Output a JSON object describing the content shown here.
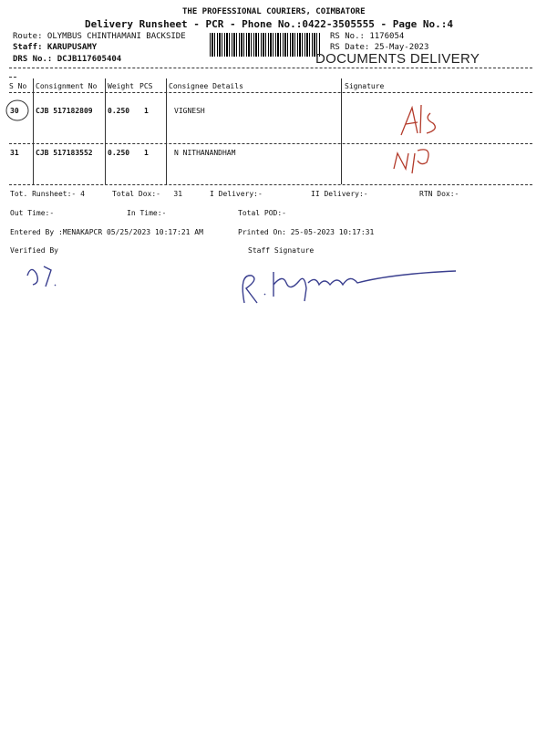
{
  "header": {
    "company": "THE PROFESSIONAL COURIERS, COIMBATORE",
    "subtitle": "Delivery Runsheet - PCR - Phone No.:0422-3505555 - Page No.:4",
    "route": "Route: OLYMBUS CHINTHAMANI BACKSIDE",
    "staff": "Staff: KARUPUSAMY",
    "drs_no": "DRS No.: DCJB117605404",
    "rs_no": "RS No.: 1176054",
    "rs_date": "RS Date: 25-May-2023",
    "stamp": "DOCUMENTS DELIVERY"
  },
  "table": {
    "columns": [
      "S No",
      "Consignment No",
      "Weight",
      "PCS",
      "Consignee Details",
      "Signature"
    ],
    "rows": [
      {
        "sno": "30",
        "consignment": "CJB 517182809",
        "weight": "0.250",
        "pcs": "1",
        "consignee": "VIGNESH"
      },
      {
        "sno": "31",
        "consignment": "CJB 517183552",
        "weight": "0.250",
        "pcs": "1",
        "consignee": "N NITHANANDHAM"
      }
    ]
  },
  "summary": {
    "tot_runsheet": "Tot. Runsheet:- 4",
    "total_dox": "Total Dox:-   31",
    "i_delivery": "I Delivery:-",
    "ii_delivery": "II Delivery:-",
    "rtn_dox": "RTN Dox:-",
    "out_time": "Out Time:-",
    "in_time": "In Time:-",
    "total_pod": "Total POD:-",
    "entered_by": "Entered By :MENAKAPCR 05/25/2023 10:17:21 AM",
    "printed_on": "Printed On: 25-05-2023 10:17:31",
    "verified_by": "Verified By",
    "staff_signature": "Staff Signature"
  },
  "colors": {
    "ink": "#111111",
    "pen": "#3a3f8f"
  }
}
